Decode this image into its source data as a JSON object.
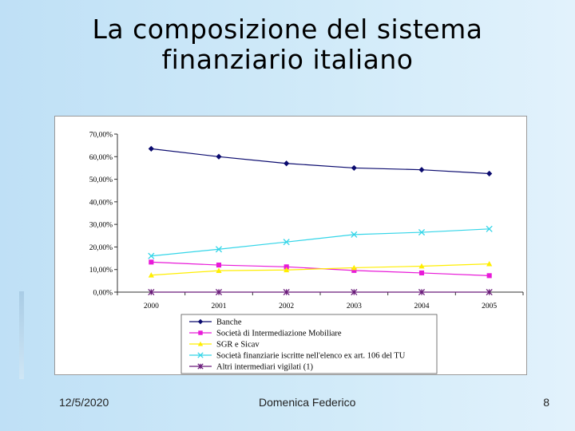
{
  "slide": {
    "title_line1": "La composizione del sistema",
    "title_line2": "finanziario italiano",
    "footer_date": "12/5/2020",
    "footer_author": "Domenica Federico",
    "page_number": "8"
  },
  "chart_data": {
    "type": "line",
    "categories": [
      "2000",
      "2001",
      "2002",
      "2003",
      "2004",
      "2005"
    ],
    "y_ticks": [
      "0,00%",
      "10,00%",
      "20,00%",
      "30,00%",
      "40,00%",
      "50,00%",
      "60,00%",
      "70,00%"
    ],
    "ylim": [
      0,
      70
    ],
    "grid": false,
    "legend_position": "bottom",
    "series": [
      {
        "name": "Banche",
        "values": [
          63.5,
          60.0,
          57.0,
          55.0,
          54.2,
          52.5
        ],
        "color": "#0a0a6e",
        "marker": "diamond"
      },
      {
        "name": "Società di Intermediazione Mobiliare",
        "values": [
          13.3,
          12.0,
          11.2,
          9.6,
          8.5,
          7.3
        ],
        "color": "#e81ad8",
        "marker": "square"
      },
      {
        "name": "SGR e Sicav",
        "values": [
          7.5,
          9.5,
          9.8,
          10.8,
          11.5,
          12.5
        ],
        "color": "#ffee00",
        "marker": "triangle"
      },
      {
        "name": "Società finanziarie iscritte nell'elenco ex art. 106 del TU",
        "values": [
          16.0,
          19.0,
          22.2,
          25.5,
          26.5,
          28.0
        ],
        "color": "#33d5e8",
        "marker": "x"
      },
      {
        "name": "Altri intermediari vigilati (1)",
        "values": [
          0.0,
          0.0,
          0.0,
          0.0,
          0.0,
          0.0
        ],
        "color": "#6a1b7a",
        "marker": "asterisk"
      }
    ]
  }
}
